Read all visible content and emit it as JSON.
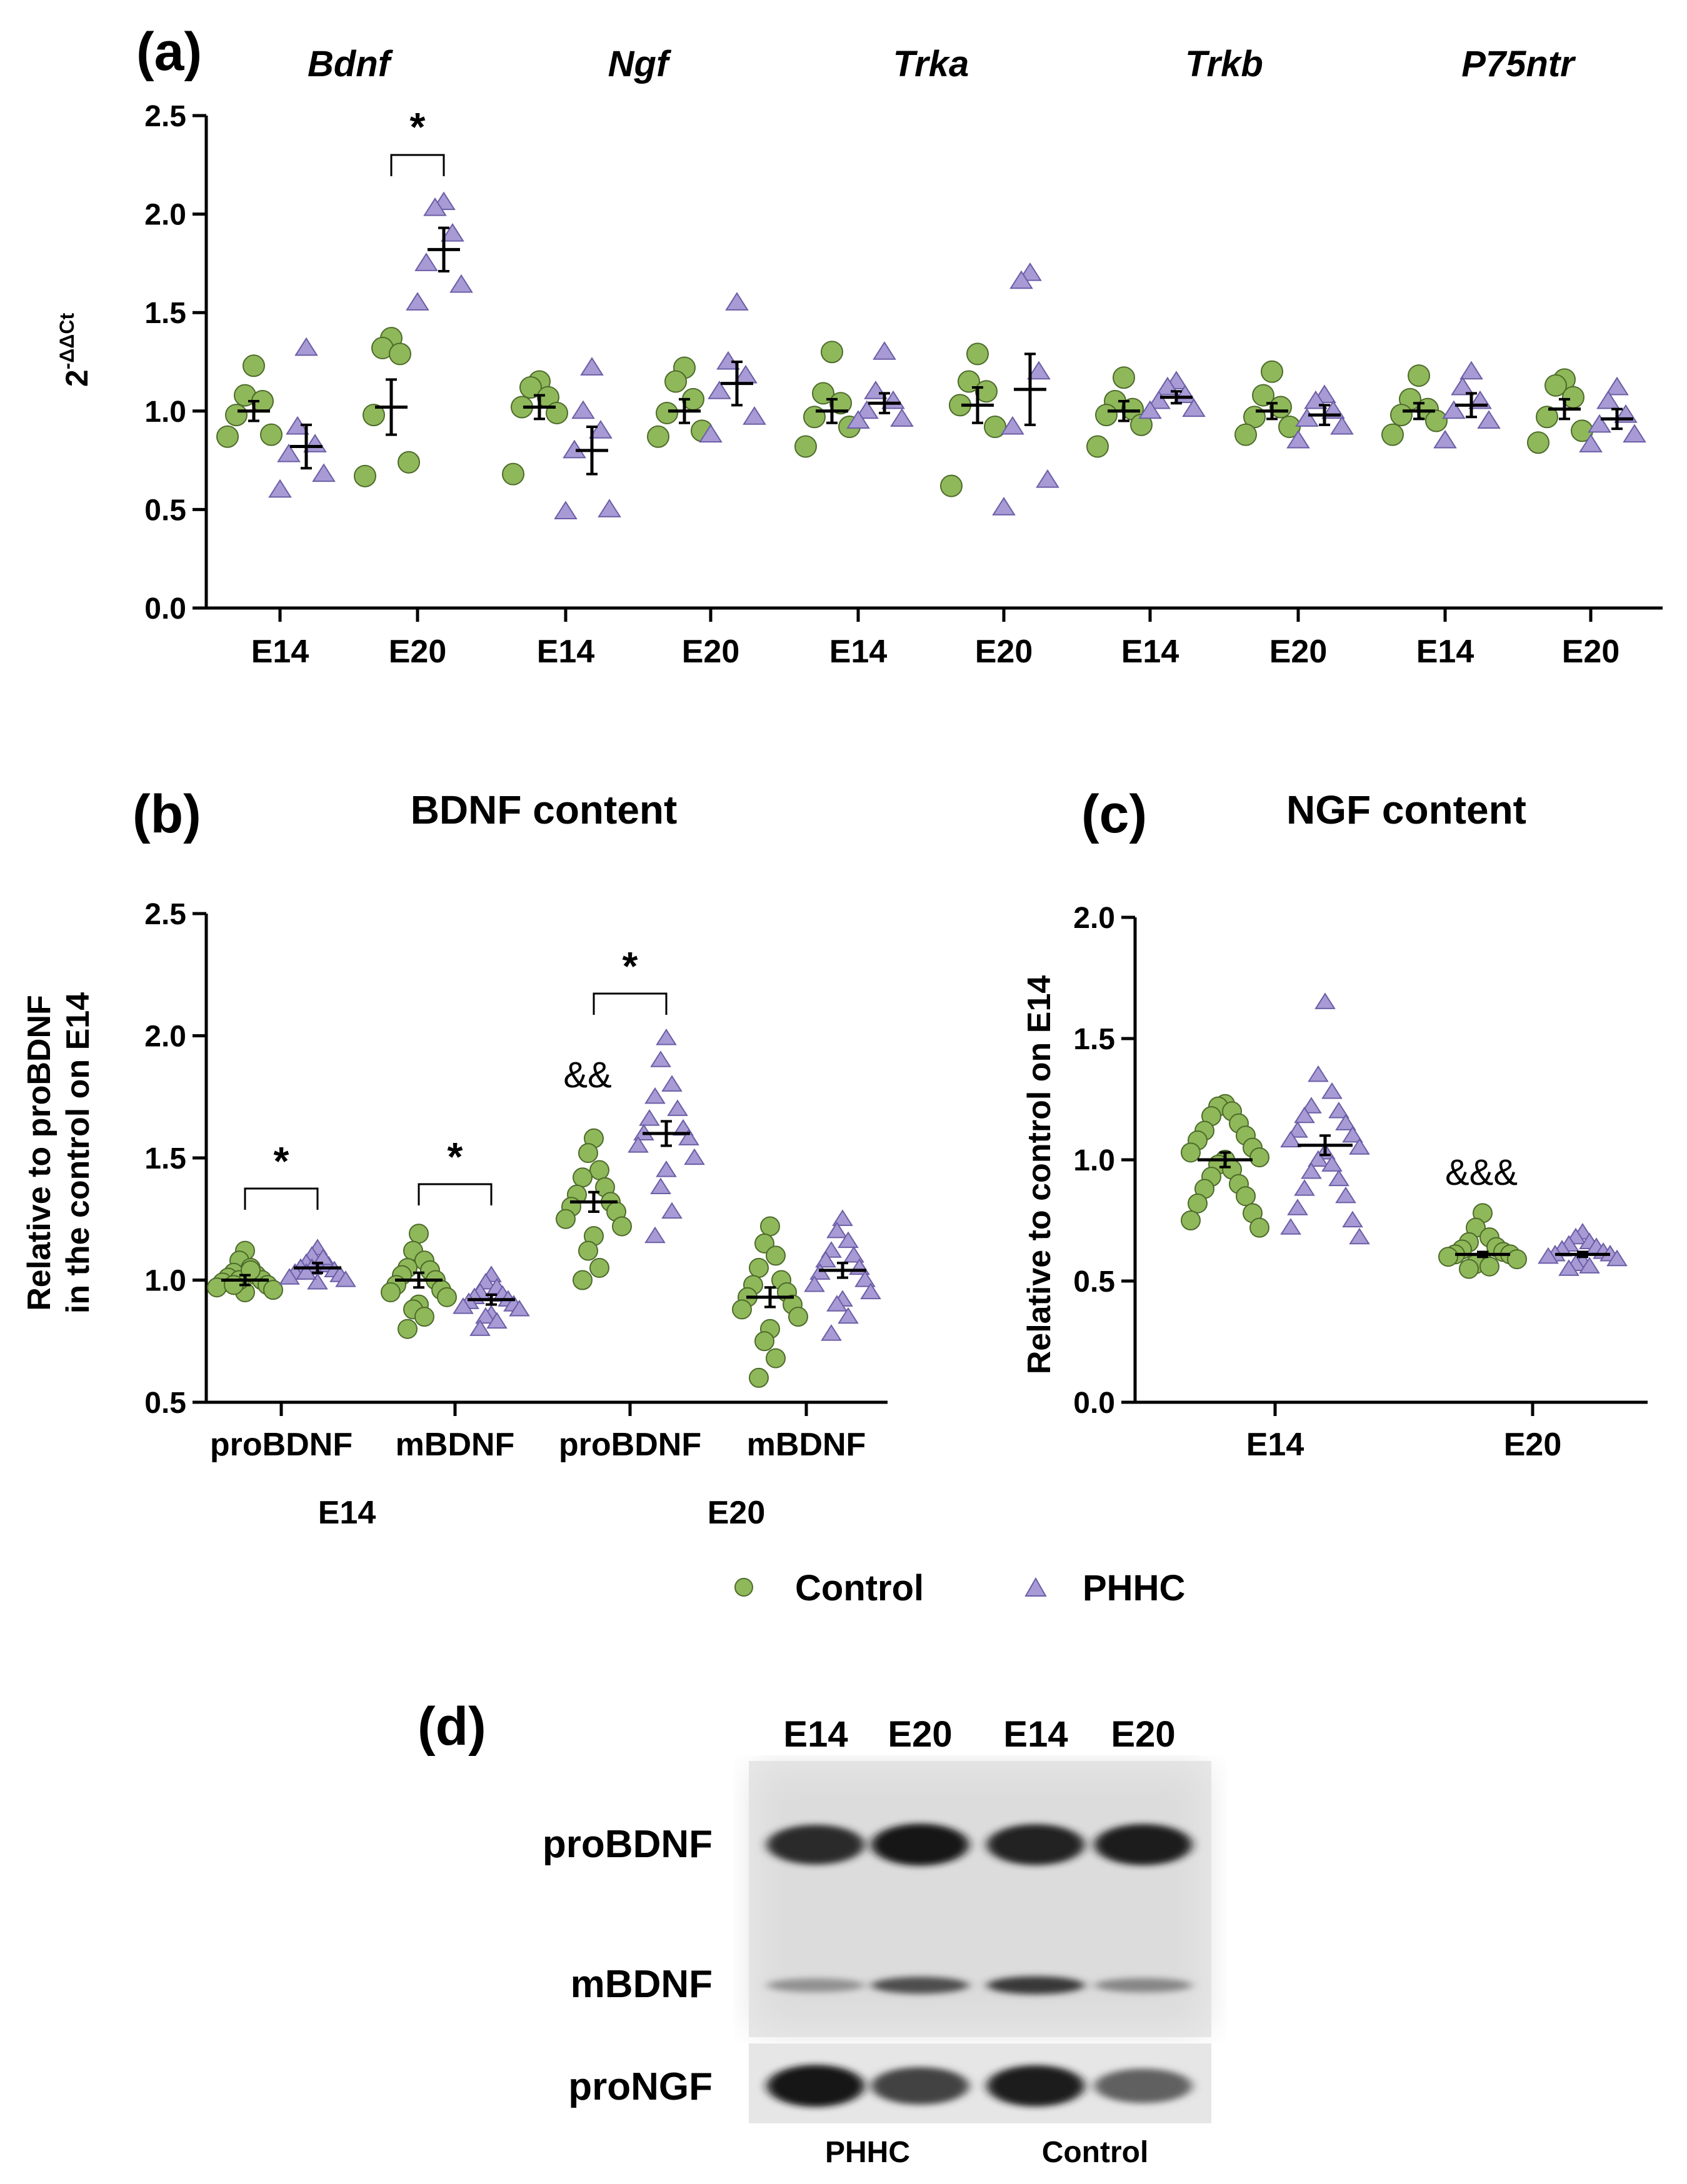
{
  "colors": {
    "control": "#8fb85a",
    "phhc": "#a89ad4",
    "axis": "#000000"
  },
  "chart_data": [
    {
      "id": "a",
      "panel_label": "(a)",
      "type": "scatter",
      "title": "",
      "ylabel_base": "2",
      "ylabel_sup": "-ΔΔCt",
      "ylim": [
        0,
        2.5
      ],
      "yticks": [
        0.0,
        0.5,
        1.0,
        1.5,
        2.0,
        2.5
      ],
      "ytick_labels": [
        "0.0",
        "0.5",
        "1.0",
        "1.5",
        "2.0",
        "2.5"
      ],
      "genes": [
        "Bdnf",
        "Ngf",
        "Trka",
        "Trkb",
        "P75ntr"
      ],
      "categories": [
        "E14",
        "E20",
        "E14",
        "E20",
        "E14",
        "E20",
        "E14",
        "E20",
        "E14",
        "E20"
      ],
      "series": [
        {
          "name": "Control",
          "means": [
            1.0,
            1.02,
            1.02,
            1.0,
            1.0,
            1.03,
            1.0,
            1.0,
            1.0,
            1.01
          ],
          "sems": [
            0.05,
            0.14,
            0.06,
            0.06,
            0.06,
            0.09,
            0.05,
            0.04,
            0.04,
            0.05
          ],
          "points": [
            [
              1.23,
              1.08,
              1.05,
              0.98,
              0.88,
              0.87
            ],
            [
              1.37,
              1.32,
              1.29,
              0.98,
              0.74,
              0.67
            ],
            [
              1.15,
              1.12,
              1.07,
              1.02,
              0.99,
              0.68
            ],
            [
              1.22,
              1.15,
              1.06,
              0.99,
              0.9,
              0.87
            ],
            [
              1.3,
              1.09,
              1.04,
              0.97,
              0.92,
              0.82
            ],
            [
              1.29,
              1.15,
              1.1,
              1.03,
              0.92,
              0.62
            ],
            [
              1.17,
              1.05,
              1.01,
              0.98,
              0.93,
              0.82
            ],
            [
              1.2,
              1.08,
              1.02,
              0.97,
              0.92,
              0.88
            ],
            [
              1.18,
              1.06,
              1.01,
              0.98,
              0.95,
              0.88
            ],
            [
              1.16,
              1.13,
              1.07,
              0.97,
              0.9,
              0.84
            ]
          ]
        },
        {
          "name": "PHHC",
          "means": [
            0.82,
            1.82,
            0.8,
            1.14,
            1.04,
            1.11,
            1.07,
            0.98,
            1.03,
            0.96
          ],
          "sems": [
            0.11,
            0.11,
            0.12,
            0.11,
            0.05,
            0.18,
            0.03,
            0.05,
            0.06,
            0.05
          ],
          "points": [
            [
              1.32,
              0.92,
              0.83,
              0.78,
              0.68,
              0.6
            ],
            [
              2.06,
              2.03,
              1.9,
              1.75,
              1.64,
              1.55
            ],
            [
              1.22,
              1.0,
              0.9,
              0.8,
              0.5,
              0.49
            ],
            [
              1.55,
              1.25,
              1.18,
              1.1,
              0.97,
              0.88
            ],
            [
              1.3,
              1.1,
              1.05,
              1.0,
              0.96,
              0.95
            ],
            [
              1.7,
              1.66,
              1.2,
              0.92,
              0.65,
              0.51
            ],
            [
              1.15,
              1.12,
              1.08,
              1.05,
              1.01,
              1.0
            ],
            [
              1.08,
              1.05,
              1.0,
              0.96,
              0.92,
              0.85
            ],
            [
              1.2,
              1.12,
              1.05,
              1.0,
              0.95,
              0.85
            ],
            [
              1.12,
              1.05,
              0.98,
              0.93,
              0.88,
              0.83
            ]
          ]
        }
      ],
      "annotations": [
        {
          "text": "*",
          "between": [
            2,
            3
          ]
        }
      ]
    },
    {
      "id": "b",
      "panel_label": "(b)",
      "type": "scatter",
      "title": "BDNF content",
      "ylabel_lines": [
        "Relative to proBDNF",
        "in the control on E14"
      ],
      "ylim": [
        0.5,
        2.5
      ],
      "yticks": [
        0.5,
        1.0,
        1.5,
        2.0,
        2.5
      ],
      "ytick_labels": [
        "0.5",
        "1.0",
        "1.5",
        "2.0",
        "2.5"
      ],
      "categories": [
        "proBDNF",
        "mBDNF",
        "proBDNF",
        "mBDNF"
      ],
      "group_labels": [
        "E14",
        "E20"
      ],
      "series": [
        {
          "name": "Control",
          "means": [
            1.0,
            1.0,
            1.32,
            0.93
          ],
          "sems": [
            0.02,
            0.03,
            0.04,
            0.04
          ],
          "points": [
            [
              1.12,
              1.08,
              1.05,
              1.03,
              1.02,
              1.01,
              1.0,
              0.99,
              0.98,
              0.97,
              0.96,
              0.95,
              1.0,
              1.04,
              0.98
            ],
            [
              1.19,
              1.12,
              1.08,
              1.05,
              1.04,
              1.02,
              1.0,
              0.98,
              0.96,
              0.95,
              0.93,
              0.9,
              0.88,
              0.85,
              0.8
            ],
            [
              1.58,
              1.52,
              1.45,
              1.42,
              1.38,
              1.35,
              1.32,
              1.3,
              1.28,
              1.25,
              1.22,
              1.18,
              1.12,
              1.05,
              1.0
            ],
            [
              1.22,
              1.15,
              1.1,
              1.05,
              1.0,
              0.98,
              0.95,
              0.93,
              0.9,
              0.88,
              0.85,
              0.8,
              0.75,
              0.68,
              0.6
            ]
          ]
        },
        {
          "name": "PHHC",
          "means": [
            1.05,
            0.92,
            1.6,
            1.04
          ],
          "sems": [
            0.02,
            0.02,
            0.05,
            0.03
          ],
          "points": [
            [
              1.13,
              1.1,
              1.08,
              1.07,
              1.06,
              1.05,
              1.04,
              1.03,
              1.02,
              1.01,
              1.0,
              0.99,
              1.05,
              1.09,
              1.03
            ],
            [
              1.02,
              0.99,
              0.97,
              0.95,
              0.94,
              0.93,
              0.92,
              0.91,
              0.9,
              0.89,
              0.88,
              0.86,
              0.85,
              0.83,
              0.8
            ],
            [
              1.99,
              1.9,
              1.8,
              1.75,
              1.7,
              1.66,
              1.62,
              1.6,
              1.58,
              1.55,
              1.5,
              1.45,
              1.38,
              1.28,
              1.18
            ],
            [
              1.25,
              1.2,
              1.16,
              1.12,
              1.1,
              1.08,
              1.05,
              1.03,
              1.0,
              0.98,
              0.95,
              0.92,
              0.9,
              0.85,
              0.78
            ]
          ]
        }
      ],
      "annotations": [
        {
          "text": "*",
          "between": [
            0,
            0
          ]
        },
        {
          "text": "*",
          "between": [
            1,
            1
          ]
        },
        {
          "text": "*",
          "between": [
            2,
            2
          ]
        },
        {
          "text": "&&",
          "at": 2
        }
      ]
    },
    {
      "id": "c",
      "panel_label": "(c)",
      "type": "scatter",
      "title": "NGF content",
      "ylabel": "Relative to control on E14",
      "ylim": [
        0,
        2.0
      ],
      "yticks": [
        0.0,
        0.5,
        1.0,
        1.5,
        2.0
      ],
      "ytick_labels": [
        "0.0",
        "0.5",
        "1.0",
        "1.5",
        "2.0"
      ],
      "categories": [
        "E14",
        "E20"
      ],
      "series": [
        {
          "name": "Control",
          "means": [
            1.0,
            0.61
          ],
          "sems": [
            0.03,
            0.01
          ],
          "points": [
            [
              1.23,
              1.22,
              1.2,
              1.18,
              1.15,
              1.12,
              1.1,
              1.08,
              1.05,
              1.03,
              1.01,
              1.0,
              0.98,
              0.96,
              0.93,
              0.9,
              0.88,
              0.85,
              0.82,
              0.78,
              0.75,
              0.72
            ],
            [
              0.78,
              0.72,
              0.68,
              0.66,
              0.64,
              0.63,
              0.62,
              0.61,
              0.61,
              0.6,
              0.59,
              0.58,
              0.57,
              0.56,
              0.55
            ]
          ]
        },
        {
          "name": "PHHC",
          "means": [
            1.06,
            0.61
          ],
          "sems": [
            0.04,
            0.01
          ],
          "points": [
            [
              1.65,
              1.35,
              1.28,
              1.22,
              1.2,
              1.18,
              1.15,
              1.12,
              1.1,
              1.08,
              1.05,
              1.03,
              1.0,
              0.98,
              0.95,
              0.92,
              0.88,
              0.85,
              0.8,
              0.75,
              0.72,
              0.68
            ],
            [
              0.7,
              0.68,
              0.66,
              0.65,
              0.64,
              0.63,
              0.62,
              0.61,
              0.61,
              0.6,
              0.59,
              0.58,
              0.57,
              0.56,
              0.55
            ]
          ]
        }
      ],
      "annotations": [
        {
          "text": "&&&",
          "at": 1
        }
      ]
    }
  ],
  "legend": {
    "items": [
      {
        "label": "Control",
        "marker": "circle"
      },
      {
        "label": "PHHC",
        "marker": "triangle"
      }
    ]
  },
  "blot": {
    "panel_label": "(d)",
    "columns": [
      "E14",
      "E20",
      "E14",
      "E20"
    ],
    "rows": [
      "proBDNF",
      "mBDNF",
      "proNGF"
    ],
    "groups": [
      "PHHC",
      "Control"
    ],
    "band_intensity": {
      "proBDNF": [
        0.85,
        0.95,
        0.9,
        0.92
      ],
      "mBDNF": [
        0.4,
        0.7,
        0.8,
        0.45
      ],
      "proNGF": [
        0.95,
        0.75,
        0.92,
        0.62
      ]
    }
  }
}
